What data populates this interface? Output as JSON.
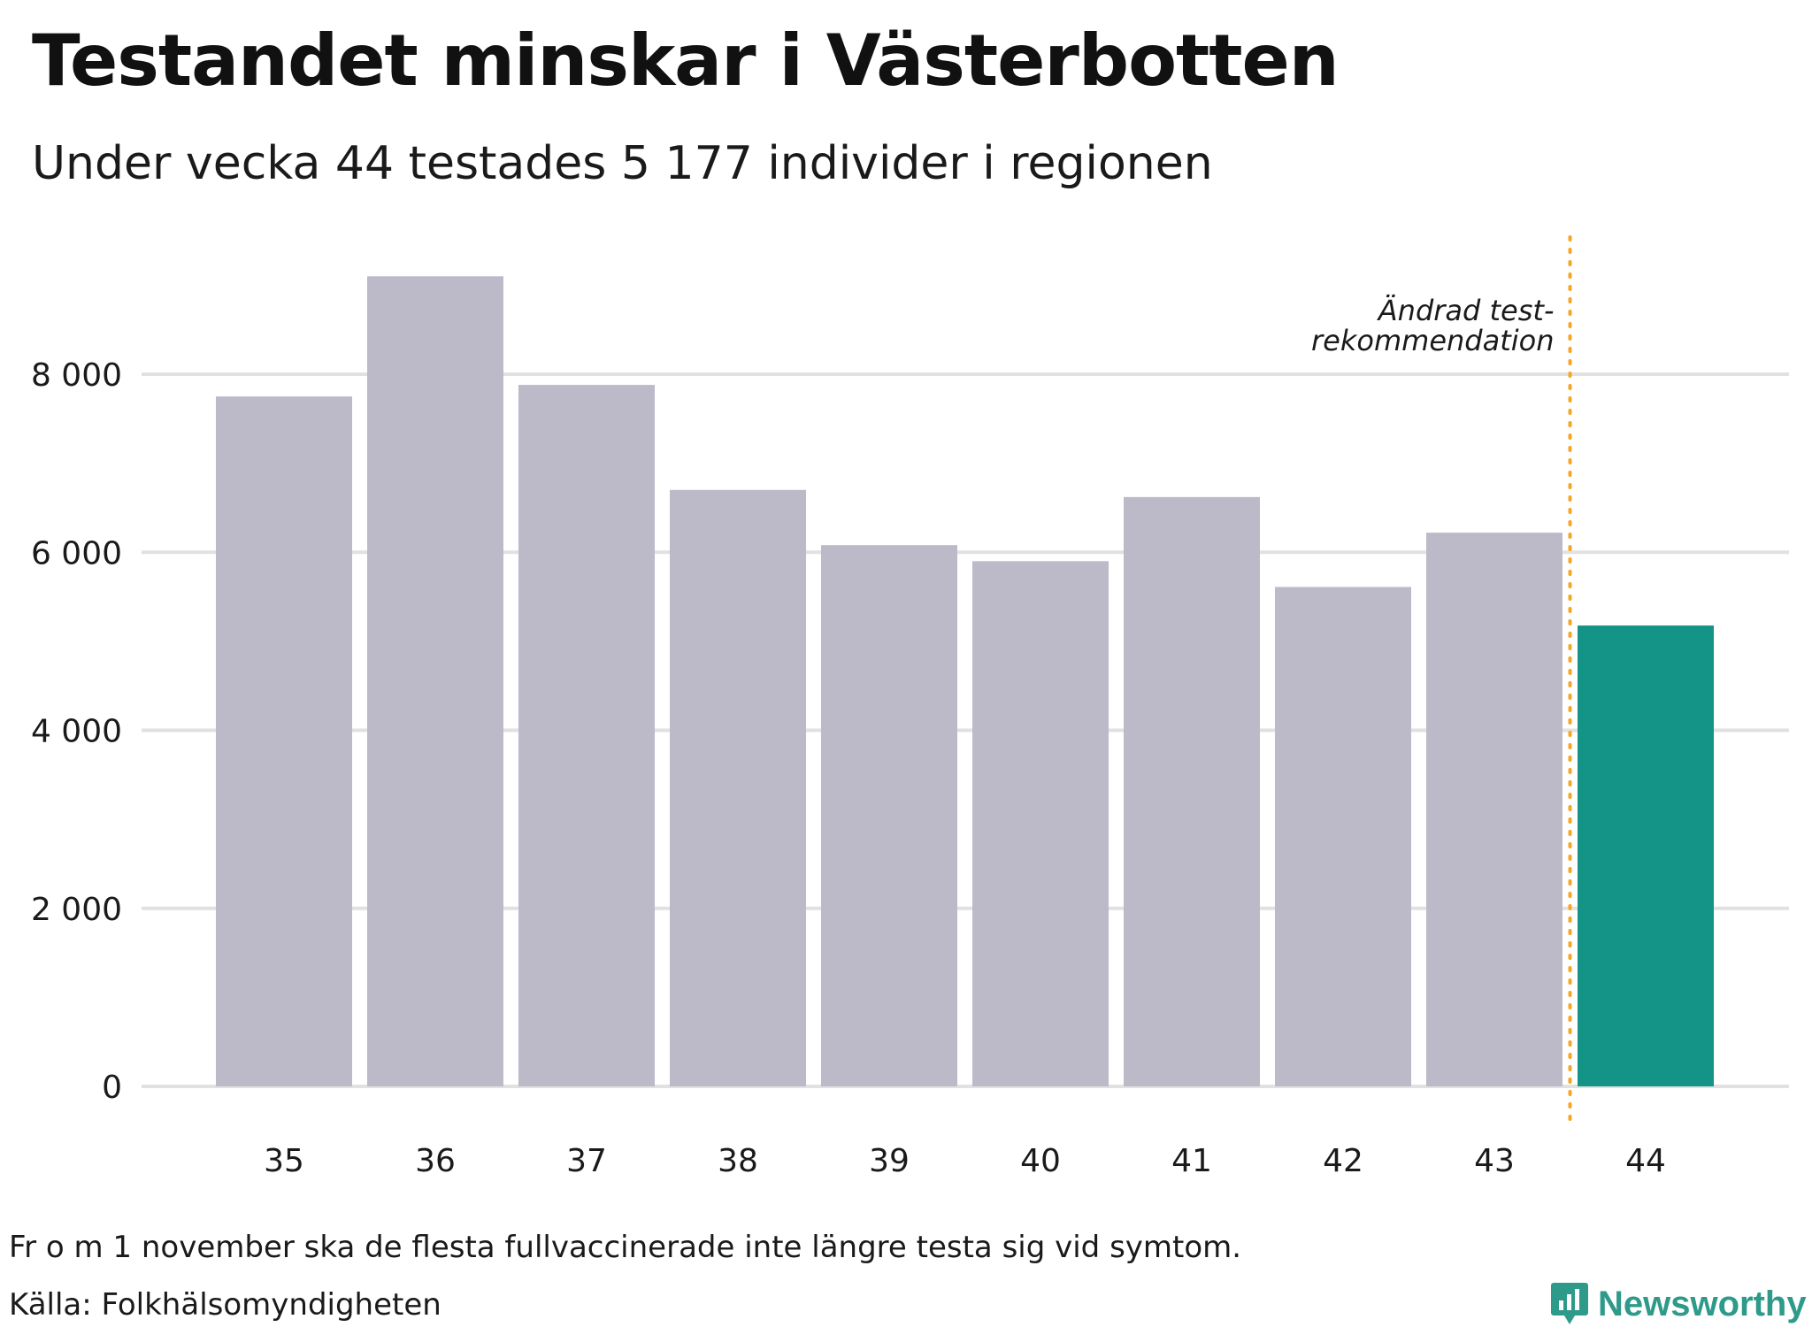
{
  "chart_data": {
    "type": "bar",
    "title": "Testandet minskar i Västerbotten",
    "subtitle": "Under vecka 44 testades 5 177 individer i regionen",
    "categories": [
      "35",
      "36",
      "37",
      "38",
      "39",
      "40",
      "41",
      "42",
      "43",
      "44"
    ],
    "values": [
      7750,
      9100,
      7880,
      6700,
      6080,
      5900,
      6620,
      5610,
      6220,
      5177
    ],
    "highlight_index": 9,
    "xlabel": "",
    "ylabel": "",
    "ylim": [
      0,
      9600
    ],
    "yticks": [
      0,
      2000,
      4000,
      6000,
      8000
    ],
    "ytick_labels": [
      "0",
      "2 000",
      "4 000",
      "6 000",
      "8 000"
    ],
    "grid": true,
    "annotation": {
      "line1": "Ändrad test-",
      "line2": "rekommendation",
      "between_categories": [
        "43",
        "44"
      ]
    },
    "colors": {
      "bar": "#bcbac8",
      "highlight": "#139486",
      "grid": "#e1e1e1",
      "annotation_line": "#f5a623"
    }
  },
  "footnote": "Fr o m 1 november ska de flesta fullvaccinerade inte längre testa sig vid symtom.",
  "source": "Källa: Folkhälsomyndigheten",
  "brand": {
    "name": "Newsworthy",
    "icon": "newsworthy-logo-icon",
    "color": "#2e9a8a"
  }
}
